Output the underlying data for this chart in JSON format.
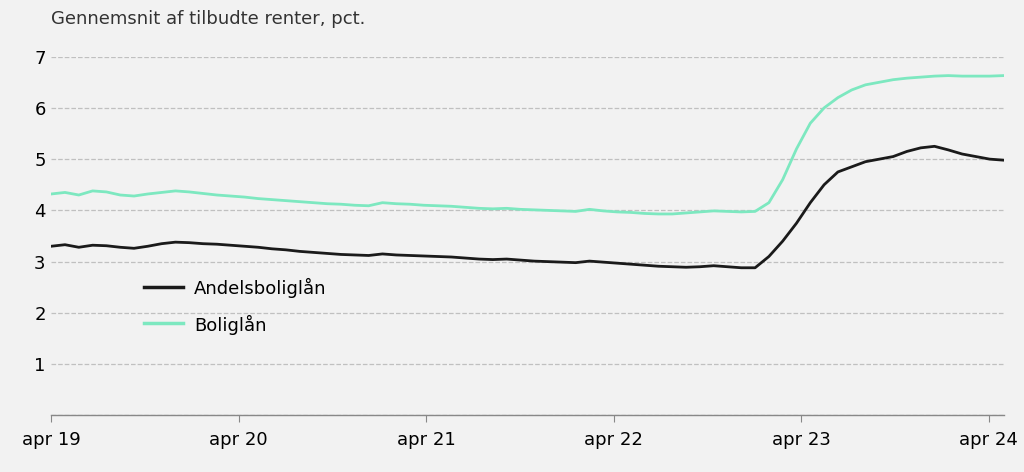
{
  "title": "Gennemsnit af tilbudte renter, pct.",
  "background_color": "#f2f2f2",
  "plot_bg_color": "#f2f2f2",
  "ylim": [
    0,
    7
  ],
  "yticks": [
    0,
    1,
    2,
    3,
    4,
    5,
    6,
    7
  ],
  "line_black_label": "Andelsboliglån",
  "line_green_label": "Boliglån",
  "line_black_color": "#1a1a1a",
  "line_green_color": "#7de8c0",
  "x_tick_labels": [
    "apr 19",
    "apr 20",
    "apr 21",
    "apr 22",
    "apr 23",
    "apr 24"
  ],
  "andelsboliglaan": [
    3.3,
    3.33,
    3.28,
    3.32,
    3.31,
    3.28,
    3.26,
    3.3,
    3.35,
    3.38,
    3.37,
    3.35,
    3.34,
    3.32,
    3.3,
    3.28,
    3.25,
    3.23,
    3.2,
    3.18,
    3.16,
    3.14,
    3.13,
    3.12,
    3.15,
    3.13,
    3.12,
    3.11,
    3.1,
    3.09,
    3.07,
    3.05,
    3.04,
    3.05,
    3.03,
    3.01,
    3.0,
    2.99,
    2.98,
    3.01,
    2.99,
    2.97,
    2.95,
    2.93,
    2.91,
    2.9,
    2.89,
    2.9,
    2.92,
    2.9,
    2.88,
    2.88,
    3.1,
    3.4,
    3.75,
    4.15,
    4.5,
    4.75,
    4.85,
    4.95,
    5.0,
    5.05,
    5.15,
    5.22,
    5.25,
    5.18,
    5.1,
    5.05,
    5.0,
    4.98
  ],
  "boliglaan": [
    4.32,
    4.35,
    4.3,
    4.38,
    4.36,
    4.3,
    4.28,
    4.32,
    4.35,
    4.38,
    4.36,
    4.33,
    4.3,
    4.28,
    4.26,
    4.23,
    4.21,
    4.19,
    4.17,
    4.15,
    4.13,
    4.12,
    4.1,
    4.09,
    4.15,
    4.13,
    4.12,
    4.1,
    4.09,
    4.08,
    4.06,
    4.04,
    4.03,
    4.04,
    4.02,
    4.01,
    4.0,
    3.99,
    3.98,
    4.02,
    3.99,
    3.97,
    3.96,
    3.94,
    3.93,
    3.93,
    3.95,
    3.97,
    3.99,
    3.98,
    3.97,
    3.98,
    4.15,
    4.6,
    5.2,
    5.7,
    6.0,
    6.2,
    6.35,
    6.45,
    6.5,
    6.55,
    6.58,
    6.6,
    6.62,
    6.63,
    6.62,
    6.62,
    6.62,
    6.63
  ],
  "n_andels": 70,
  "n_bolig": 70,
  "x_start": 2019.25,
  "x_end": 2024.33,
  "x_tick_positions": [
    2019.25,
    2020.25,
    2021.25,
    2022.25,
    2023.25,
    2024.25
  ]
}
